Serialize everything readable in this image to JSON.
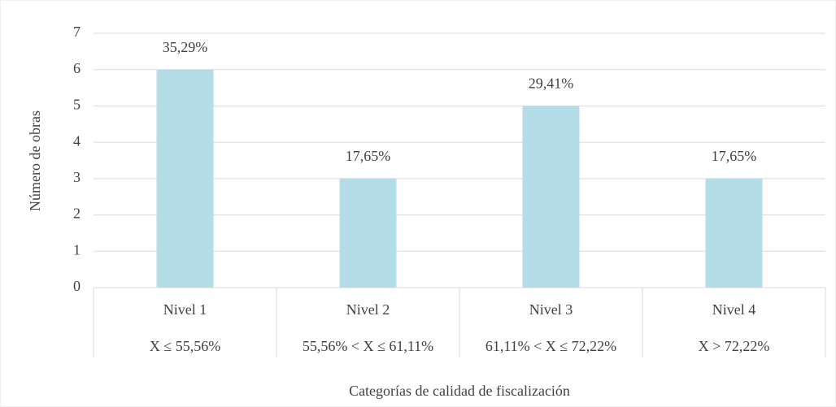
{
  "chart_data": {
    "type": "bar",
    "x_label": "Categorías de calidad de fiscalización",
    "y_label": "Número de obras",
    "categories": [
      "Nivel 1",
      "Nivel 2",
      "Nivel 3",
      "Nivel 4"
    ],
    "subcategories": [
      "X ≤ 55,56%",
      "55,56% < X ≤ 61,11%",
      "61,11% < X ≤ 72,22%",
      "X > 72,22%"
    ],
    "values": [
      6,
      3,
      5,
      3
    ],
    "percent_labels": [
      "35,29%",
      "17,65%",
      "29,41%",
      "17,65%"
    ],
    "color": "#b4dde8",
    "ylim": [
      0,
      7
    ],
    "yticks": [
      0,
      1,
      2,
      3,
      4,
      5,
      6,
      7
    ],
    "grid": true
  }
}
